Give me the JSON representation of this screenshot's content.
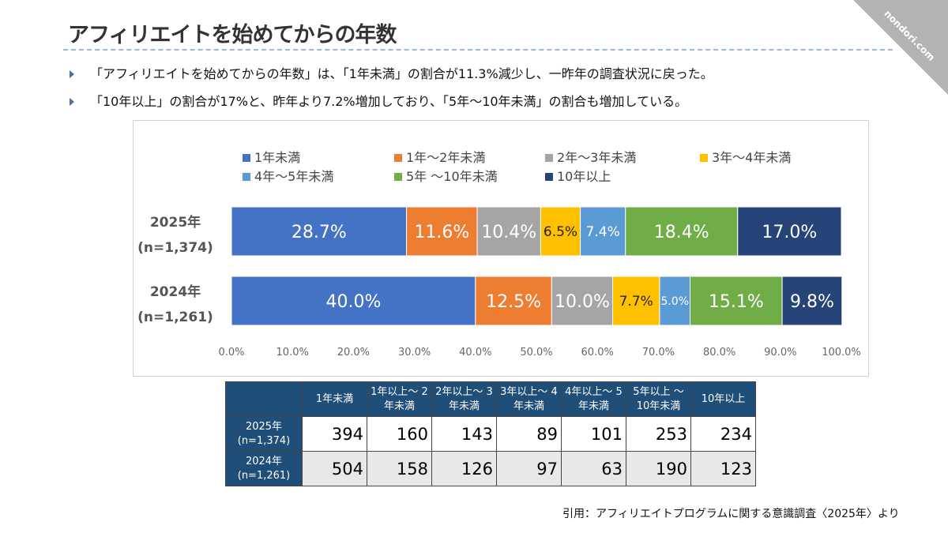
{
  "title": "アフィリエイトを始めてからの年数",
  "bullets": [
    "「アフィリエイトを始めてからの年数」は、「1年未満」の割合が11.3%減少し、一昨年の調査状況に戻った。",
    "「10年以上」の割合が17%と、昨年より7.2%増加しており、「5年～10年未満」の割合も増加している。"
  ],
  "watermark": "nondori.com",
  "chart_data": {
    "type": "bar",
    "orientation": "horizontal",
    "stacked": true,
    "categories": [
      "2025年 (n=1,374)",
      "2024年 (n=1,261)"
    ],
    "category_lines": [
      [
        "2025年",
        "(n=1,374)"
      ],
      [
        "2024年",
        "(n=1,261)"
      ]
    ],
    "series": [
      {
        "name": "1年未満",
        "color": "#4472C4",
        "values": [
          28.7,
          40.0
        ]
      },
      {
        "name": "1年～2年未満",
        "color": "#ED7D31",
        "values": [
          11.6,
          12.5
        ]
      },
      {
        "name": "2年～3年未満",
        "color": "#A5A5A5",
        "values": [
          10.4,
          10.0
        ]
      },
      {
        "name": "3年～4年未満",
        "color": "#FFC000",
        "values": [
          6.5,
          7.7
        ]
      },
      {
        "name": "4年～5年未満",
        "color": "#5B9BD5",
        "values": [
          7.4,
          5.0
        ]
      },
      {
        "name": "5年 ～10年未満",
        "color": "#70AD47",
        "values": [
          18.4,
          15.1
        ]
      },
      {
        "name": "10年以上",
        "color": "#264478",
        "values": [
          17.0,
          9.8
        ]
      }
    ],
    "xlim": [
      0,
      100
    ],
    "xticks": [
      "0.0%",
      "10.0%",
      "20.0%",
      "30.0%",
      "40.0%",
      "50.0%",
      "60.0%",
      "70.0%",
      "80.0%",
      "90.0%",
      "100.0%"
    ],
    "legend": "top",
    "grid": false
  },
  "table": {
    "headers": [
      "1年未満",
      "1年以上～ 2年未満",
      "2年以上～ 3年未満",
      "3年以上～ 4年未満",
      "4年以上～ 5年未満",
      "5年以上 ～ 10年未満",
      "10年以上"
    ],
    "rows": [
      {
        "label": [
          "2025年",
          "(n=1,374)"
        ],
        "values": [
          "394",
          "160",
          "143",
          "89",
          "101",
          "253",
          "234"
        ]
      },
      {
        "label": [
          "2024年",
          "(n=1,261)"
        ],
        "values": [
          "504",
          "158",
          "126",
          "97",
          "63",
          "190",
          "123"
        ]
      }
    ]
  },
  "citation": "引用：アフィリエイトプログラムに関する意識調査〈2025年〉より"
}
